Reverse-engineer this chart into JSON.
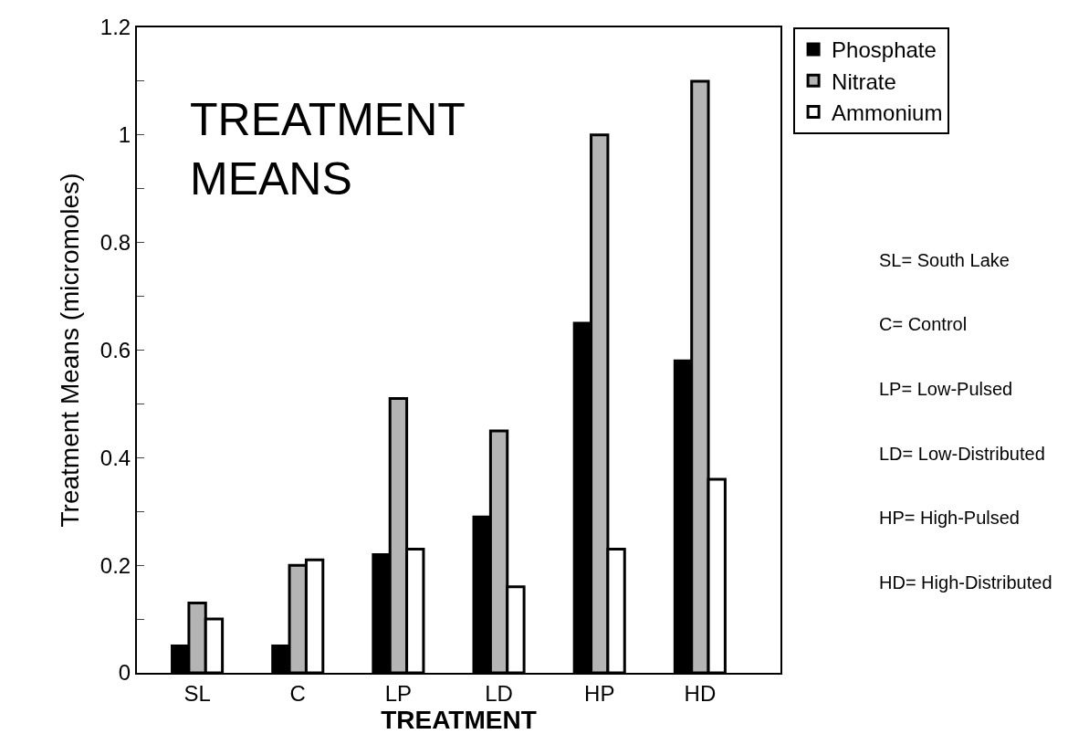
{
  "chart_data": {
    "type": "bar",
    "title": "TREATMENT\nMEANS",
    "xlabel": "TREATMENT",
    "ylabel": "Treatment Means (micromoles)",
    "categories": [
      "SL",
      "C",
      "LP",
      "LD",
      "HP",
      "HD"
    ],
    "series": [
      {
        "name": "Phosphate",
        "color": "#000000",
        "values": [
          0.05,
          0.05,
          0.22,
          0.29,
          0.65,
          0.58
        ]
      },
      {
        "name": "Nitrate",
        "color": "#b4b4b4",
        "values": [
          0.13,
          0.2,
          0.51,
          0.45,
          1.0,
          1.1
        ]
      },
      {
        "name": "Ammonium",
        "color": "#ffffff",
        "values": [
          0.1,
          0.21,
          0.23,
          0.16,
          0.23,
          0.36
        ]
      }
    ],
    "ylim": [
      0,
      1.2
    ],
    "yticks": [
      0,
      {
        "value": 0.1,
        "label": null
      },
      0.2,
      {
        "value": 0.3,
        "label": null
      },
      0.4,
      {
        "value": 0.5,
        "label": null
      },
      0.6,
      {
        "value": 0.7,
        "label": null
      },
      0.8,
      {
        "value": 0.9,
        "label": null
      },
      1,
      {
        "value": 1.1,
        "label": null
      },
      1.2
    ],
    "legend": "top right",
    "annotations": [
      "SL= South Lake",
      "C= Control",
      "LP= Low-Pulsed",
      "LD= Low-Distributed",
      "HP= High-Pulsed",
      "HD= High-Distributed"
    ]
  }
}
